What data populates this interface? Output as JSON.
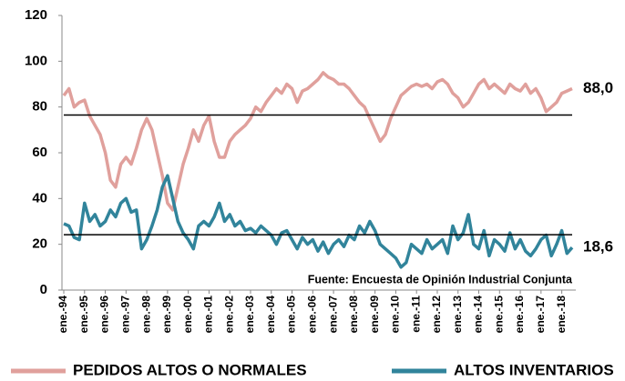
{
  "chart_data": {
    "type": "line",
    "source": "Fuente: Encuesta de Opinión Industrial Conjunta",
    "categories": [
      "ene.-94",
      null,
      null,
      null,
      "ene.-95",
      null,
      null,
      null,
      "ene.-96",
      null,
      null,
      null,
      "ene.-97",
      null,
      null,
      null,
      "ene.-98",
      null,
      null,
      null,
      "ene.-99",
      null,
      null,
      null,
      "ene.-00",
      null,
      null,
      null,
      "ene.-01",
      null,
      null,
      null,
      "ene.-02",
      null,
      null,
      null,
      "ene.-03",
      null,
      null,
      null,
      "ene.-04",
      null,
      null,
      null,
      "ene.-05",
      null,
      null,
      null,
      "ene.-06",
      null,
      null,
      null,
      "ene.-07",
      null,
      null,
      null,
      "ene.-08",
      null,
      null,
      null,
      "ene.-09",
      null,
      null,
      null,
      "ene.-10",
      null,
      null,
      null,
      "ene.-11",
      null,
      null,
      null,
      "ene.-12",
      null,
      null,
      null,
      "ene.-13",
      null,
      null,
      null,
      "ene.-14",
      null,
      null,
      null,
      "ene.-15",
      null,
      null,
      null,
      "ene.-16",
      null,
      null,
      null,
      "ene.-17",
      null,
      null,
      null,
      "ene.-18",
      null,
      null
    ],
    "series": [
      {
        "name": "PEDIDOS ALTOS O NORMALES",
        "color": "#e0a09c",
        "values": [
          85,
          88,
          80,
          82,
          83,
          76,
          72,
          68,
          60,
          48,
          45,
          55,
          58,
          55,
          62,
          70,
          75,
          70,
          60,
          50,
          38,
          35,
          45,
          55,
          62,
          70,
          65,
          72,
          76,
          65,
          58,
          58,
          65,
          68,
          70,
          72,
          75,
          80,
          78,
          82,
          85,
          88,
          86,
          90,
          88,
          82,
          87,
          88,
          90,
          92,
          95,
          93,
          92,
          90,
          90,
          88,
          85,
          82,
          80,
          75,
          70,
          65,
          68,
          75,
          80,
          85,
          87,
          89,
          90,
          89,
          90,
          88,
          91,
          92,
          90,
          86,
          84,
          80,
          82,
          86,
          90,
          92,
          88,
          90,
          88,
          86,
          90,
          88,
          87,
          90,
          86,
          88,
          84,
          78,
          80,
          82,
          86,
          87,
          88
        ],
        "value_labels": [
          null,
          null,
          null,
          null,
          null,
          null,
          null,
          null,
          null,
          null,
          null,
          null,
          null,
          null,
          null,
          null,
          null,
          null,
          null,
          null,
          null,
          null,
          null,
          null,
          null,
          null,
          null,
          null,
          null,
          null,
          null,
          null,
          null,
          null,
          null,
          null,
          null,
          null,
          null,
          null,
          null,
          null,
          null,
          null,
          null,
          null,
          null,
          null,
          null,
          null,
          null,
          null,
          null,
          null,
          null,
          null,
          null,
          null,
          null,
          null,
          null,
          null,
          null,
          null,
          null,
          null,
          null,
          null,
          null,
          null,
          null,
          null,
          null,
          null,
          null,
          null,
          null,
          null,
          null,
          null,
          null,
          null,
          null,
          null,
          null,
          null,
          null,
          null,
          null,
          null,
          null,
          null,
          null,
          null,
          null,
          null,
          null,
          null,
          "88,0"
        ]
      },
      {
        "name": "ALTOS INVENTARIOS",
        "color": "#31849b",
        "values": [
          29,
          28,
          23,
          22,
          38,
          30,
          33,
          28,
          30,
          35,
          32,
          38,
          40,
          34,
          35,
          18,
          22,
          28,
          35,
          45,
          50,
          40,
          30,
          25,
          22,
          18,
          28,
          30,
          28,
          32,
          38,
          30,
          33,
          28,
          30,
          26,
          27,
          25,
          28,
          26,
          24,
          20,
          25,
          26,
          22,
          18,
          23,
          20,
          22,
          17,
          21,
          16,
          20,
          22,
          19,
          24,
          22,
          28,
          25,
          30,
          26,
          20,
          18,
          16,
          14,
          10,
          12,
          20,
          18,
          16,
          22,
          18,
          20,
          22,
          16,
          28,
          22,
          25,
          33,
          20,
          18,
          26,
          15,
          22,
          20,
          17,
          25,
          18,
          22,
          17,
          15,
          18,
          22,
          24,
          15,
          20,
          26,
          16,
          18.6
        ],
        "value_labels": [
          null,
          null,
          null,
          null,
          null,
          null,
          null,
          null,
          null,
          null,
          null,
          null,
          null,
          null,
          null,
          null,
          null,
          null,
          null,
          null,
          null,
          null,
          null,
          null,
          null,
          null,
          null,
          null,
          null,
          null,
          null,
          null,
          null,
          null,
          null,
          null,
          null,
          null,
          null,
          null,
          null,
          null,
          null,
          null,
          null,
          null,
          null,
          null,
          null,
          null,
          null,
          null,
          null,
          null,
          null,
          null,
          null,
          null,
          null,
          null,
          null,
          null,
          null,
          null,
          null,
          null,
          null,
          null,
          null,
          null,
          null,
          null,
          null,
          null,
          null,
          null,
          null,
          null,
          null,
          null,
          null,
          null,
          null,
          null,
          null,
          null,
          null,
          null,
          null,
          null,
          null,
          null,
          null,
          null,
          null,
          null,
          null,
          null,
          "18,6"
        ]
      }
    ],
    "reference_lines": [
      76.5,
      24.2
    ],
    "reference_color": "#000000",
    "ylim": [
      0,
      120
    ],
    "yticks": [
      0,
      20,
      40,
      60,
      80,
      100,
      120
    ],
    "legend": "bottom"
  }
}
